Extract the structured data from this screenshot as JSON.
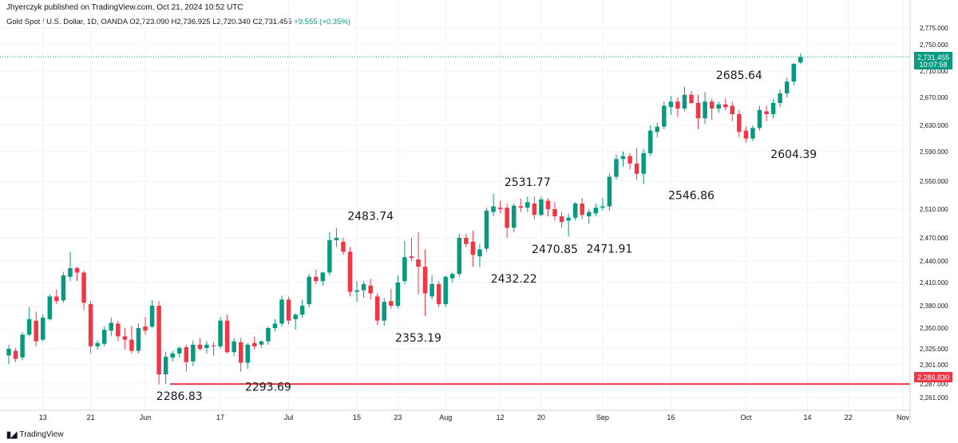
{
  "header": {
    "publisher": "Jhyerczyk published on TradingView.com, Oct 21, 2024 10:52 UTC"
  },
  "symbol": {
    "name": "Gold Spot / U.S. Dollar, 1D, OANDA",
    "open": "O2,723.090",
    "high": "H2,736.925",
    "low": "L2,720.340",
    "close": "C2,731.455",
    "change": "+9.555 (+0.35%)"
  },
  "price_tag": {
    "price": "2,731.455",
    "countdown": "10:07:58",
    "color": "#089981"
  },
  "level_tag": {
    "price": "2,286.830",
    "color": "#f23645"
  },
  "footer": {
    "brand": "TradingView"
  },
  "colors": {
    "up": "#089981",
    "down": "#f23645",
    "level": "#f23645"
  },
  "chart_data": {
    "type": "candlestick",
    "y_ticks": [
      2261,
      2287,
      2301,
      2325,
      2350,
      2380,
      2410,
      2440,
      2470,
      2510,
      2550,
      2590,
      2630,
      2670,
      2710,
      2750,
      2775
    ],
    "y_tick_labels": [
      "2,261.000",
      "2,287.000",
      "2,301.000",
      "2,325.000",
      "2,350.000",
      "2,380.000",
      "2,410.000",
      "2,440.000",
      "2,470.000",
      "2,510.000",
      "2,550.000",
      "2,590.000",
      "2,630.000",
      "2,670.000",
      "2,710.000",
      "2,750.000",
      "2,775.000"
    ],
    "x_ticks": [
      {
        "label": "13",
        "index": 5
      },
      {
        "label": "21",
        "index": 12
      },
      {
        "label": "Jun",
        "index": 20
      },
      {
        "label": "17",
        "index": 31
      },
      {
        "label": "Jul",
        "index": 41
      },
      {
        "label": "15",
        "index": 51
      },
      {
        "label": "23",
        "index": 57
      },
      {
        "label": "Aug",
        "index": 64
      },
      {
        "label": "12",
        "index": 72
      },
      {
        "label": "20",
        "index": 78
      },
      {
        "label": "Sep",
        "index": 87
      },
      {
        "label": "16",
        "index": 97
      },
      {
        "label": "Oct",
        "index": 108
      },
      {
        "label": "14",
        "index": 117
      },
      {
        "label": "22",
        "index": 123
      },
      {
        "label": "Nov",
        "index": 131
      }
    ],
    "horizontal_level": 2286.83,
    "current_price": 2731.455,
    "annotations": [
      {
        "text": "2286.83",
        "index": 25,
        "price": 2286.83,
        "pos": "below"
      },
      {
        "text": "2293.69",
        "index": 38,
        "price": 2293.69,
        "pos": "below"
      },
      {
        "text": "2483.74",
        "index": 53,
        "price": 2483.74,
        "pos": "above"
      },
      {
        "text": "2353.19",
        "index": 60,
        "price": 2353.19,
        "pos": "below"
      },
      {
        "text": "2531.77",
        "index": 76,
        "price": 2531.77,
        "pos": "above"
      },
      {
        "text": "2470.85",
        "index": 80,
        "price": 2470.85,
        "pos": "below"
      },
      {
        "text": "2432.22",
        "index": 74,
        "price": 2432.22,
        "pos": "below"
      },
      {
        "text": "2471.91",
        "index": 88,
        "price": 2471.91,
        "pos": "below"
      },
      {
        "text": "2546.86",
        "index": 100,
        "price": 2546.86,
        "pos": "below"
      },
      {
        "text": "2685.64",
        "index": 107,
        "price": 2685.64,
        "pos": "above"
      },
      {
        "text": "2604.39",
        "index": 115,
        "price": 2604.39,
        "pos": "below"
      }
    ],
    "candles": [
      {
        "o": 2315,
        "h": 2330,
        "l": 2302,
        "c": 2325
      },
      {
        "o": 2322,
        "h": 2326,
        "l": 2305,
        "c": 2310
      },
      {
        "o": 2312,
        "h": 2345,
        "l": 2308,
        "c": 2342
      },
      {
        "o": 2342,
        "h": 2378,
        "l": 2340,
        "c": 2362
      },
      {
        "o": 2360,
        "h": 2372,
        "l": 2328,
        "c": 2334
      },
      {
        "o": 2336,
        "h": 2368,
        "l": 2334,
        "c": 2364
      },
      {
        "o": 2362,
        "h": 2395,
        "l": 2360,
        "c": 2392
      },
      {
        "o": 2392,
        "h": 2401,
        "l": 2382,
        "c": 2386
      },
      {
        "o": 2387,
        "h": 2425,
        "l": 2384,
        "c": 2420
      },
      {
        "o": 2418,
        "h": 2452,
        "l": 2412,
        "c": 2430
      },
      {
        "o": 2430,
        "h": 2432,
        "l": 2412,
        "c": 2424
      },
      {
        "o": 2424,
        "h": 2427,
        "l": 2374,
        "c": 2384
      },
      {
        "o": 2382,
        "h": 2386,
        "l": 2318,
        "c": 2328
      },
      {
        "o": 2328,
        "h": 2335,
        "l": 2324,
        "c": 2332
      },
      {
        "o": 2331,
        "h": 2352,
        "l": 2328,
        "c": 2348
      },
      {
        "o": 2347,
        "h": 2364,
        "l": 2340,
        "c": 2357
      },
      {
        "o": 2356,
        "h": 2360,
        "l": 2334,
        "c": 2340
      },
      {
        "o": 2340,
        "h": 2350,
        "l": 2324,
        "c": 2336
      },
      {
        "o": 2336,
        "h": 2353,
        "l": 2318,
        "c": 2322
      },
      {
        "o": 2322,
        "h": 2356,
        "l": 2318,
        "c": 2350
      },
      {
        "o": 2352,
        "h": 2365,
        "l": 2342,
        "c": 2347
      },
      {
        "o": 2352,
        "h": 2387,
        "l": 2350,
        "c": 2380
      },
      {
        "o": 2380,
        "h": 2386,
        "l": 2286,
        "c": 2294
      },
      {
        "o": 2294,
        "h": 2320,
        "l": 2287,
        "c": 2313
      },
      {
        "o": 2312,
        "h": 2322,
        "l": 2306,
        "c": 2318
      },
      {
        "o": 2318,
        "h": 2328,
        "l": 2312,
        "c": 2326
      },
      {
        "o": 2327,
        "h": 2330,
        "l": 2296,
        "c": 2305
      },
      {
        "o": 2306,
        "h": 2335,
        "l": 2300,
        "c": 2330
      },
      {
        "o": 2330,
        "h": 2338,
        "l": 2322,
        "c": 2325
      },
      {
        "o": 2326,
        "h": 2334,
        "l": 2318,
        "c": 2330
      },
      {
        "o": 2329,
        "h": 2333,
        "l": 2315,
        "c": 2328
      },
      {
        "o": 2328,
        "h": 2365,
        "l": 2325,
        "c": 2360
      },
      {
        "o": 2360,
        "h": 2368,
        "l": 2318,
        "c": 2320
      },
      {
        "o": 2320,
        "h": 2338,
        "l": 2314,
        "c": 2334
      },
      {
        "o": 2333,
        "h": 2338,
        "l": 2296,
        "c": 2304
      },
      {
        "o": 2304,
        "h": 2332,
        "l": 2298,
        "c": 2330
      },
      {
        "o": 2332,
        "h": 2340,
        "l": 2324,
        "c": 2328
      },
      {
        "o": 2330,
        "h": 2335,
        "l": 2326,
        "c": 2334
      },
      {
        "o": 2334,
        "h": 2352,
        "l": 2330,
        "c": 2350
      },
      {
        "o": 2350,
        "h": 2362,
        "l": 2346,
        "c": 2356
      },
      {
        "o": 2356,
        "h": 2393,
        "l": 2352,
        "c": 2388
      },
      {
        "o": 2388,
        "h": 2392,
        "l": 2355,
        "c": 2360
      },
      {
        "o": 2362,
        "h": 2370,
        "l": 2348,
        "c": 2368
      },
      {
        "o": 2368,
        "h": 2388,
        "l": 2364,
        "c": 2380
      },
      {
        "o": 2382,
        "h": 2422,
        "l": 2378,
        "c": 2418
      },
      {
        "o": 2418,
        "h": 2428,
        "l": 2408,
        "c": 2412
      },
      {
        "o": 2412,
        "h": 2425,
        "l": 2406,
        "c": 2424
      },
      {
        "o": 2424,
        "h": 2478,
        "l": 2420,
        "c": 2467
      },
      {
        "o": 2467,
        "h": 2484,
        "l": 2458,
        "c": 2470
      },
      {
        "o": 2465,
        "h": 2470,
        "l": 2448,
        "c": 2452
      },
      {
        "o": 2452,
        "h": 2458,
        "l": 2392,
        "c": 2398
      },
      {
        "o": 2398,
        "h": 2412,
        "l": 2385,
        "c": 2400
      },
      {
        "o": 2400,
        "h": 2412,
        "l": 2390,
        "c": 2408
      },
      {
        "o": 2406,
        "h": 2415,
        "l": 2388,
        "c": 2396
      },
      {
        "o": 2392,
        "h": 2396,
        "l": 2354,
        "c": 2360
      },
      {
        "o": 2360,
        "h": 2390,
        "l": 2353,
        "c": 2385
      },
      {
        "o": 2386,
        "h": 2402,
        "l": 2376,
        "c": 2380
      },
      {
        "o": 2380,
        "h": 2420,
        "l": 2376,
        "c": 2410
      },
      {
        "o": 2412,
        "h": 2466,
        "l": 2408,
        "c": 2445
      },
      {
        "o": 2446,
        "h": 2470,
        "l": 2440,
        "c": 2444
      },
      {
        "o": 2442,
        "h": 2478,
        "l": 2395,
        "c": 2432
      },
      {
        "o": 2432,
        "h": 2455,
        "l": 2366,
        "c": 2396
      },
      {
        "o": 2392,
        "h": 2420,
        "l": 2388,
        "c": 2408
      },
      {
        "o": 2408,
        "h": 2412,
        "l": 2378,
        "c": 2382
      },
      {
        "o": 2382,
        "h": 2420,
        "l": 2378,
        "c": 2418
      },
      {
        "o": 2416,
        "h": 2424,
        "l": 2410,
        "c": 2422
      },
      {
        "o": 2422,
        "h": 2476,
        "l": 2418,
        "c": 2470
      },
      {
        "o": 2470,
        "h": 2476,
        "l": 2458,
        "c": 2462
      },
      {
        "o": 2465,
        "h": 2480,
        "l": 2432,
        "c": 2448
      },
      {
        "o": 2446,
        "h": 2462,
        "l": 2432,
        "c": 2455
      },
      {
        "o": 2456,
        "h": 2512,
        "l": 2452,
        "c": 2508
      },
      {
        "o": 2506,
        "h": 2532,
        "l": 2500,
        "c": 2514
      },
      {
        "o": 2512,
        "h": 2522,
        "l": 2504,
        "c": 2510
      },
      {
        "o": 2512,
        "h": 2518,
        "l": 2470,
        "c": 2484
      },
      {
        "o": 2484,
        "h": 2518,
        "l": 2478,
        "c": 2515
      },
      {
        "o": 2514,
        "h": 2525,
        "l": 2506,
        "c": 2512
      },
      {
        "o": 2512,
        "h": 2528,
        "l": 2506,
        "c": 2520
      },
      {
        "o": 2518,
        "h": 2528,
        "l": 2496,
        "c": 2502
      },
      {
        "o": 2502,
        "h": 2528,
        "l": 2500,
        "c": 2524
      },
      {
        "o": 2522,
        "h": 2526,
        "l": 2500,
        "c": 2510
      },
      {
        "o": 2510,
        "h": 2520,
        "l": 2494,
        "c": 2500
      },
      {
        "o": 2500,
        "h": 2506,
        "l": 2484,
        "c": 2492
      },
      {
        "o": 2494,
        "h": 2504,
        "l": 2472,
        "c": 2498
      },
      {
        "o": 2498,
        "h": 2520,
        "l": 2494,
        "c": 2518
      },
      {
        "o": 2518,
        "h": 2526,
        "l": 2496,
        "c": 2502
      },
      {
        "o": 2500,
        "h": 2510,
        "l": 2490,
        "c": 2506
      },
      {
        "o": 2504,
        "h": 2518,
        "l": 2500,
        "c": 2512
      },
      {
        "o": 2512,
        "h": 2526,
        "l": 2508,
        "c": 2514
      },
      {
        "o": 2514,
        "h": 2560,
        "l": 2508,
        "c": 2556
      },
      {
        "o": 2556,
        "h": 2586,
        "l": 2552,
        "c": 2580
      },
      {
        "o": 2580,
        "h": 2590,
        "l": 2570,
        "c": 2584
      },
      {
        "o": 2584,
        "h": 2588,
        "l": 2566,
        "c": 2574
      },
      {
        "o": 2574,
        "h": 2596,
        "l": 2552,
        "c": 2560
      },
      {
        "o": 2560,
        "h": 2594,
        "l": 2546,
        "c": 2588
      },
      {
        "o": 2588,
        "h": 2630,
        "l": 2584,
        "c": 2622
      },
      {
        "o": 2620,
        "h": 2634,
        "l": 2612,
        "c": 2628
      },
      {
        "o": 2628,
        "h": 2664,
        "l": 2624,
        "c": 2658
      },
      {
        "o": 2656,
        "h": 2672,
        "l": 2645,
        "c": 2664
      },
      {
        "o": 2664,
        "h": 2670,
        "l": 2642,
        "c": 2654
      },
      {
        "o": 2654,
        "h": 2686,
        "l": 2650,
        "c": 2674
      },
      {
        "o": 2674,
        "h": 2680,
        "l": 2660,
        "c": 2662
      },
      {
        "o": 2662,
        "h": 2674,
        "l": 2624,
        "c": 2640
      },
      {
        "o": 2640,
        "h": 2678,
        "l": 2632,
        "c": 2664
      },
      {
        "o": 2664,
        "h": 2668,
        "l": 2638,
        "c": 2654
      },
      {
        "o": 2654,
        "h": 2664,
        "l": 2648,
        "c": 2660
      },
      {
        "o": 2660,
        "h": 2668,
        "l": 2652,
        "c": 2656
      },
      {
        "o": 2658,
        "h": 2664,
        "l": 2636,
        "c": 2646
      },
      {
        "o": 2646,
        "h": 2652,
        "l": 2612,
        "c": 2620
      },
      {
        "o": 2622,
        "h": 2628,
        "l": 2604,
        "c": 2610
      },
      {
        "o": 2610,
        "h": 2630,
        "l": 2606,
        "c": 2626
      },
      {
        "o": 2626,
        "h": 2658,
        "l": 2622,
        "c": 2652
      },
      {
        "o": 2650,
        "h": 2658,
        "l": 2636,
        "c": 2646
      },
      {
        "o": 2646,
        "h": 2668,
        "l": 2640,
        "c": 2662
      },
      {
        "o": 2662,
        "h": 2682,
        "l": 2656,
        "c": 2676
      },
      {
        "o": 2676,
        "h": 2700,
        "l": 2670,
        "c": 2694
      },
      {
        "o": 2694,
        "h": 2722,
        "l": 2688,
        "c": 2721
      },
      {
        "o": 2723.09,
        "h": 2736.925,
        "l": 2720.34,
        "c": 2731.455
      }
    ]
  }
}
